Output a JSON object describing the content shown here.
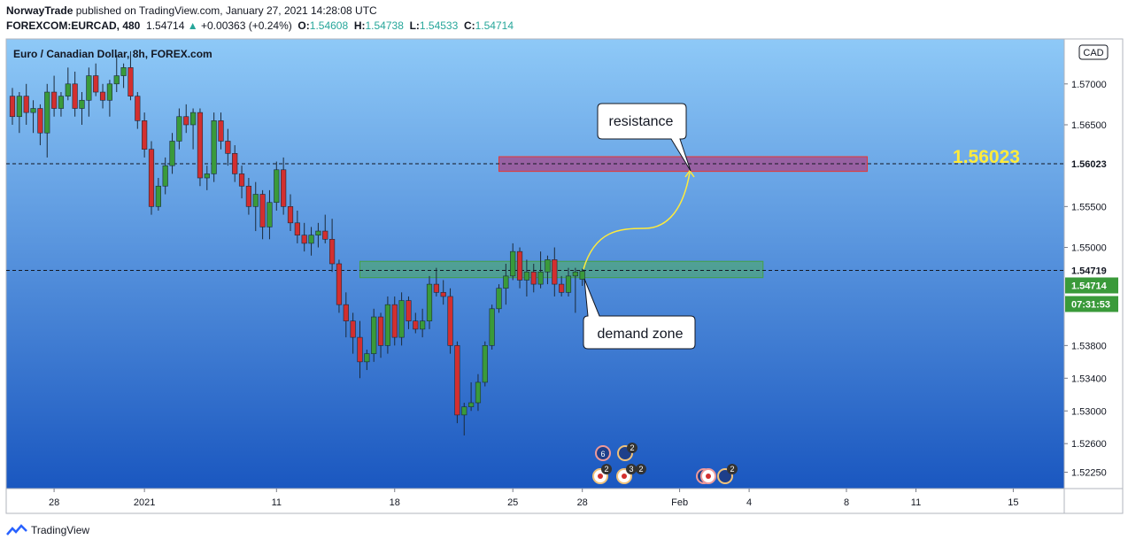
{
  "header": {
    "publisher": "NorwayTrade",
    "published_text": "published on TradingView.com, January 27, 2021 14:28:08 UTC",
    "symbol": "FOREXCOM:EURCAD, 480",
    "last": "1.54714",
    "change": "+0.00363 (+0.24%)",
    "o_label": "O:",
    "o_value": "1.54608",
    "h_label": "H:",
    "h_value": "1.54738",
    "l_label": "L:",
    "l_value": "1.54533",
    "c_label": "C:",
    "c_value": "1.54714"
  },
  "footer": {
    "brand": "TradingView"
  },
  "colors": {
    "bg_top": "#8ec9f7",
    "bg_bottom": "#1a57c0",
    "up": "#3a9a3a",
    "down": "#d32f2f",
    "resistance_fill": "#c2185b",
    "demand_fill": "#4caf50",
    "annotation_yellow": "#ffeb3b"
  },
  "chart_data": {
    "type": "candlestick",
    "title": "Euro / Canadian Dollar, 8h, FOREX.com",
    "currency_badge": "CAD",
    "y_ticks": [
      "1.57000",
      "1.56500",
      "1.55500",
      "1.55000",
      "1.53800",
      "1.53400",
      "1.53000",
      "1.52600",
      "1.52250"
    ],
    "ylim": [
      1.5205,
      1.5755
    ],
    "x_ticks": [
      {
        "label": "28",
        "idx": 6
      },
      {
        "label": "2021",
        "idx": 19
      },
      {
        "label": "11",
        "idx": 38
      },
      {
        "label": "18",
        "idx": 55
      },
      {
        "label": "25",
        "idx": 72
      },
      {
        "label": "28",
        "idx": 82
      },
      {
        "label": "Feb",
        "idx": 96
      },
      {
        "label": "4",
        "idx": 106
      },
      {
        "label": "8",
        "idx": 120
      },
      {
        "label": "11",
        "idx": 130
      },
      {
        "label": "15",
        "idx": 144
      }
    ],
    "price_labels": [
      {
        "text": "1.56023",
        "value": 1.56023,
        "style": "black"
      },
      {
        "text": "1.54719",
        "value": 1.54719,
        "style": "black"
      },
      {
        "text": "1.54714",
        "value": 1.54714,
        "style": "green"
      },
      {
        "text": "07:31:53",
        "value": 1.5455,
        "style": "green"
      }
    ],
    "big_label": "1.56023",
    "hlines": [
      1.56023,
      1.54719
    ],
    "zones": [
      {
        "name": "resistance",
        "from_idx": 70,
        "to_idx": 123,
        "low": 1.5593,
        "high": 1.5611,
        "color": "#c2185b"
      },
      {
        "name": "demand",
        "from_idx": 50,
        "to_idx": 108,
        "low": 1.5463,
        "high": 1.5483,
        "color": "#4caf50"
      }
    ],
    "annotations": [
      {
        "text": "resistance"
      },
      {
        "text": "demand zone"
      }
    ],
    "candles": [
      [
        1.5685,
        1.5695,
        1.565,
        1.566
      ],
      [
        1.566,
        1.569,
        1.564,
        1.5685
      ],
      [
        1.5685,
        1.57,
        1.565,
        1.5665
      ],
      [
        1.5665,
        1.568,
        1.564,
        1.567
      ],
      [
        1.567,
        1.5675,
        1.5625,
        1.564
      ],
      [
        1.564,
        1.57,
        1.561,
        1.569
      ],
      [
        1.569,
        1.571,
        1.566,
        1.567
      ],
      [
        1.567,
        1.569,
        1.566,
        1.5685
      ],
      [
        1.5685,
        1.572,
        1.568,
        1.57
      ],
      [
        1.57,
        1.5715,
        1.566,
        1.567
      ],
      [
        1.567,
        1.569,
        1.565,
        1.568
      ],
      [
        1.568,
        1.572,
        1.566,
        1.571
      ],
      [
        1.571,
        1.5725,
        1.5685,
        1.569
      ],
      [
        1.569,
        1.57,
        1.567,
        1.568
      ],
      [
        1.568,
        1.5705,
        1.566,
        1.57
      ],
      [
        1.57,
        1.5735,
        1.569,
        1.571
      ],
      [
        1.571,
        1.5725,
        1.5695,
        1.572
      ],
      [
        1.572,
        1.574,
        1.568,
        1.5685
      ],
      [
        1.5685,
        1.569,
        1.5645,
        1.5655
      ],
      [
        1.5655,
        1.5665,
        1.561,
        1.562
      ],
      [
        1.562,
        1.563,
        1.554,
        1.555
      ],
      [
        1.555,
        1.5585,
        1.5545,
        1.5575
      ],
      [
        1.5575,
        1.561,
        1.5565,
        1.56
      ],
      [
        1.56,
        1.564,
        1.559,
        1.563
      ],
      [
        1.563,
        1.567,
        1.562,
        1.566
      ],
      [
        1.566,
        1.5675,
        1.564,
        1.565
      ],
      [
        1.565,
        1.567,
        1.562,
        1.5665
      ],
      [
        1.5665,
        1.567,
        1.5575,
        1.5585
      ],
      [
        1.5585,
        1.56,
        1.557,
        1.559
      ],
      [
        1.559,
        1.5665,
        1.558,
        1.5655
      ],
      [
        1.5655,
        1.5665,
        1.562,
        1.563
      ],
      [
        1.563,
        1.5645,
        1.56,
        1.5615
      ],
      [
        1.5615,
        1.5625,
        1.558,
        1.559
      ],
      [
        1.559,
        1.56,
        1.556,
        1.5575
      ],
      [
        1.5575,
        1.5585,
        1.554,
        1.555
      ],
      [
        1.555,
        1.558,
        1.552,
        1.5565
      ],
      [
        1.5565,
        1.557,
        1.551,
        1.5525
      ],
      [
        1.5525,
        1.557,
        1.551,
        1.5555
      ],
      [
        1.5555,
        1.5605,
        1.5545,
        1.5595
      ],
      [
        1.5595,
        1.561,
        1.554,
        1.555
      ],
      [
        1.555,
        1.5565,
        1.552,
        1.553
      ],
      [
        1.553,
        1.5545,
        1.5505,
        1.5515
      ],
      [
        1.5515,
        1.553,
        1.5495,
        1.5505
      ],
      [
        1.5505,
        1.5525,
        1.549,
        1.5515
      ],
      [
        1.5515,
        1.553,
        1.55,
        1.552
      ],
      [
        1.552,
        1.554,
        1.5505,
        1.551
      ],
      [
        1.551,
        1.5535,
        1.547,
        1.548
      ],
      [
        1.548,
        1.5485,
        1.542,
        1.543
      ],
      [
        1.543,
        1.5445,
        1.539,
        1.541
      ],
      [
        1.541,
        1.542,
        1.537,
        1.539
      ],
      [
        1.539,
        1.541,
        1.534,
        1.536
      ],
      [
        1.536,
        1.5375,
        1.535,
        1.537
      ],
      [
        1.537,
        1.5425,
        1.536,
        1.5415
      ],
      [
        1.5415,
        1.542,
        1.5365,
        1.538
      ],
      [
        1.538,
        1.544,
        1.537,
        1.543
      ],
      [
        1.543,
        1.544,
        1.538,
        1.539
      ],
      [
        1.539,
        1.5445,
        1.538,
        1.5435
      ],
      [
        1.5435,
        1.544,
        1.54,
        1.541
      ],
      [
        1.541,
        1.542,
        1.5395,
        1.54
      ],
      [
        1.54,
        1.5425,
        1.539,
        1.541
      ],
      [
        1.541,
        1.5465,
        1.54,
        1.5455
      ],
      [
        1.5455,
        1.5475,
        1.544,
        1.5445
      ],
      [
        1.5445,
        1.546,
        1.543,
        1.544
      ],
      [
        1.544,
        1.545,
        1.537,
        1.538
      ],
      [
        1.538,
        1.5385,
        1.5285,
        1.5295
      ],
      [
        1.5295,
        1.531,
        1.527,
        1.5305
      ],
      [
        1.5305,
        1.5335,
        1.53,
        1.531
      ],
      [
        1.531,
        1.5345,
        1.53,
        1.5335
      ],
      [
        1.5335,
        1.5385,
        1.533,
        1.538
      ],
      [
        1.538,
        1.543,
        1.5375,
        1.5425
      ],
      [
        1.5425,
        1.5455,
        1.542,
        1.545
      ],
      [
        1.545,
        1.548,
        1.543,
        1.5465
      ],
      [
        1.5465,
        1.5505,
        1.546,
        1.5495
      ],
      [
        1.5495,
        1.55,
        1.545,
        1.546
      ],
      [
        1.546,
        1.5485,
        1.544,
        1.547
      ],
      [
        1.547,
        1.548,
        1.5445,
        1.5455
      ],
      [
        1.5455,
        1.5495,
        1.545,
        1.547
      ],
      [
        1.547,
        1.549,
        1.5455,
        1.5485
      ],
      [
        1.5485,
        1.55,
        1.544,
        1.5455
      ],
      [
        1.5455,
        1.5465,
        1.544,
        1.5445
      ],
      [
        1.5445,
        1.5475,
        1.544,
        1.5465
      ],
      [
        1.5465,
        1.5475,
        1.542,
        1.547
      ],
      [
        1.5461,
        1.5474,
        1.5453,
        1.5471
      ]
    ]
  }
}
